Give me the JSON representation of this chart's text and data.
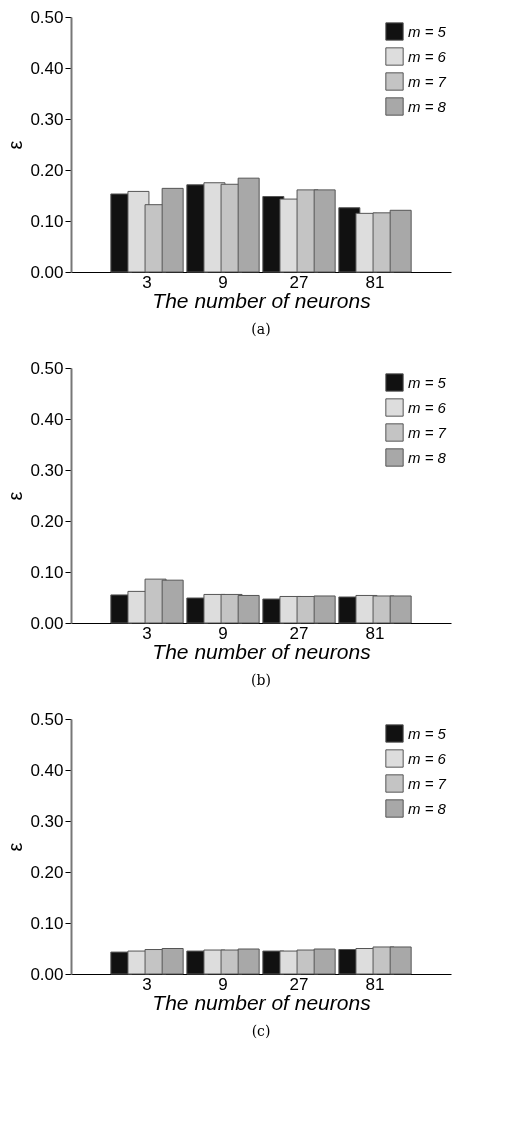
{
  "chart_data": [
    {
      "type": "bar",
      "xlabel": "The number of neurons",
      "ylabel": "ε",
      "annotations": [
        "(a)"
      ],
      "categories": [
        "3",
        "9",
        "27",
        "81"
      ],
      "ylim": [
        0,
        0.5
      ],
      "yticks": [
        {
          "value": 0,
          "label": "0.00"
        },
        {
          "value": 0.1,
          "label": "0.10"
        },
        {
          "value": 0.2,
          "label": "0.20"
        },
        {
          "value": 0.3,
          "label": "0.30"
        },
        {
          "value": 0.4,
          "label": "0.40"
        },
        {
          "value": 0.5,
          "label": "0.50"
        }
      ],
      "grid": false,
      "legend": "top right",
      "series": [
        {
          "name": "m = 5",
          "color": "#111111",
          "values": [
            0.153,
            0.171,
            0.148,
            0.126
          ]
        },
        {
          "name": "m = 6",
          "color": "#dddddd",
          "values": [
            0.158,
            0.175,
            0.143,
            0.115
          ]
        },
        {
          "name": "m = 7",
          "color": "#c4c4c4",
          "values": [
            0.132,
            0.172,
            0.161,
            0.116
          ]
        },
        {
          "name": "m = 8",
          "color": "#a8a8a8",
          "values": [
            0.164,
            0.184,
            0.161,
            0.121
          ]
        }
      ]
    },
    {
      "type": "bar",
      "xlabel": "The number of neurons",
      "ylabel": "ε",
      "annotations": [
        "(b)"
      ],
      "categories": [
        "3",
        "9",
        "27",
        "81"
      ],
      "ylim": [
        0,
        0.5
      ],
      "yticks": [
        {
          "value": 0,
          "label": "0.00"
        },
        {
          "value": 0.1,
          "label": "0.10"
        },
        {
          "value": 0.2,
          "label": "0.20"
        },
        {
          "value": 0.3,
          "label": "0.30"
        },
        {
          "value": 0.4,
          "label": "0.40"
        },
        {
          "value": 0.5,
          "label": "0.50"
        }
      ],
      "grid": false,
      "legend": "top right",
      "series": [
        {
          "name": "m = 5",
          "color": "#111111",
          "values": [
            0.055,
            0.049,
            0.047,
            0.051
          ]
        },
        {
          "name": "m = 6",
          "color": "#dddddd",
          "values": [
            0.062,
            0.056,
            0.052,
            0.054
          ]
        },
        {
          "name": "m = 7",
          "color": "#c4c4c4",
          "values": [
            0.086,
            0.056,
            0.052,
            0.053
          ]
        },
        {
          "name": "m = 8",
          "color": "#a8a8a8",
          "values": [
            0.084,
            0.054,
            0.053,
            0.053
          ]
        }
      ]
    },
    {
      "type": "bar",
      "xlabel": "The number of neurons",
      "ylabel": "ε",
      "annotations": [
        "(c)"
      ],
      "categories": [
        "3",
        "9",
        "27",
        "81"
      ],
      "ylim": [
        0,
        0.5
      ],
      "yticks": [
        {
          "value": 0,
          "label": "0.00"
        },
        {
          "value": 0.1,
          "label": "0.10"
        },
        {
          "value": 0.2,
          "label": "0.20"
        },
        {
          "value": 0.3,
          "label": "0.30"
        },
        {
          "value": 0.4,
          "label": "0.40"
        },
        {
          "value": 0.5,
          "label": "0.50"
        }
      ],
      "grid": false,
      "legend": "top right",
      "series": [
        {
          "name": "m = 5",
          "color": "#111111",
          "values": [
            0.043,
            0.045,
            0.045,
            0.048
          ]
        },
        {
          "name": "m = 6",
          "color": "#dddddd",
          "values": [
            0.045,
            0.047,
            0.045,
            0.05
          ]
        },
        {
          "name": "m = 7",
          "color": "#c4c4c4",
          "values": [
            0.048,
            0.047,
            0.047,
            0.053
          ]
        },
        {
          "name": "m = 8",
          "color": "#a8a8a8",
          "values": [
            0.05,
            0.049,
            0.049,
            0.053
          ]
        }
      ]
    }
  ]
}
